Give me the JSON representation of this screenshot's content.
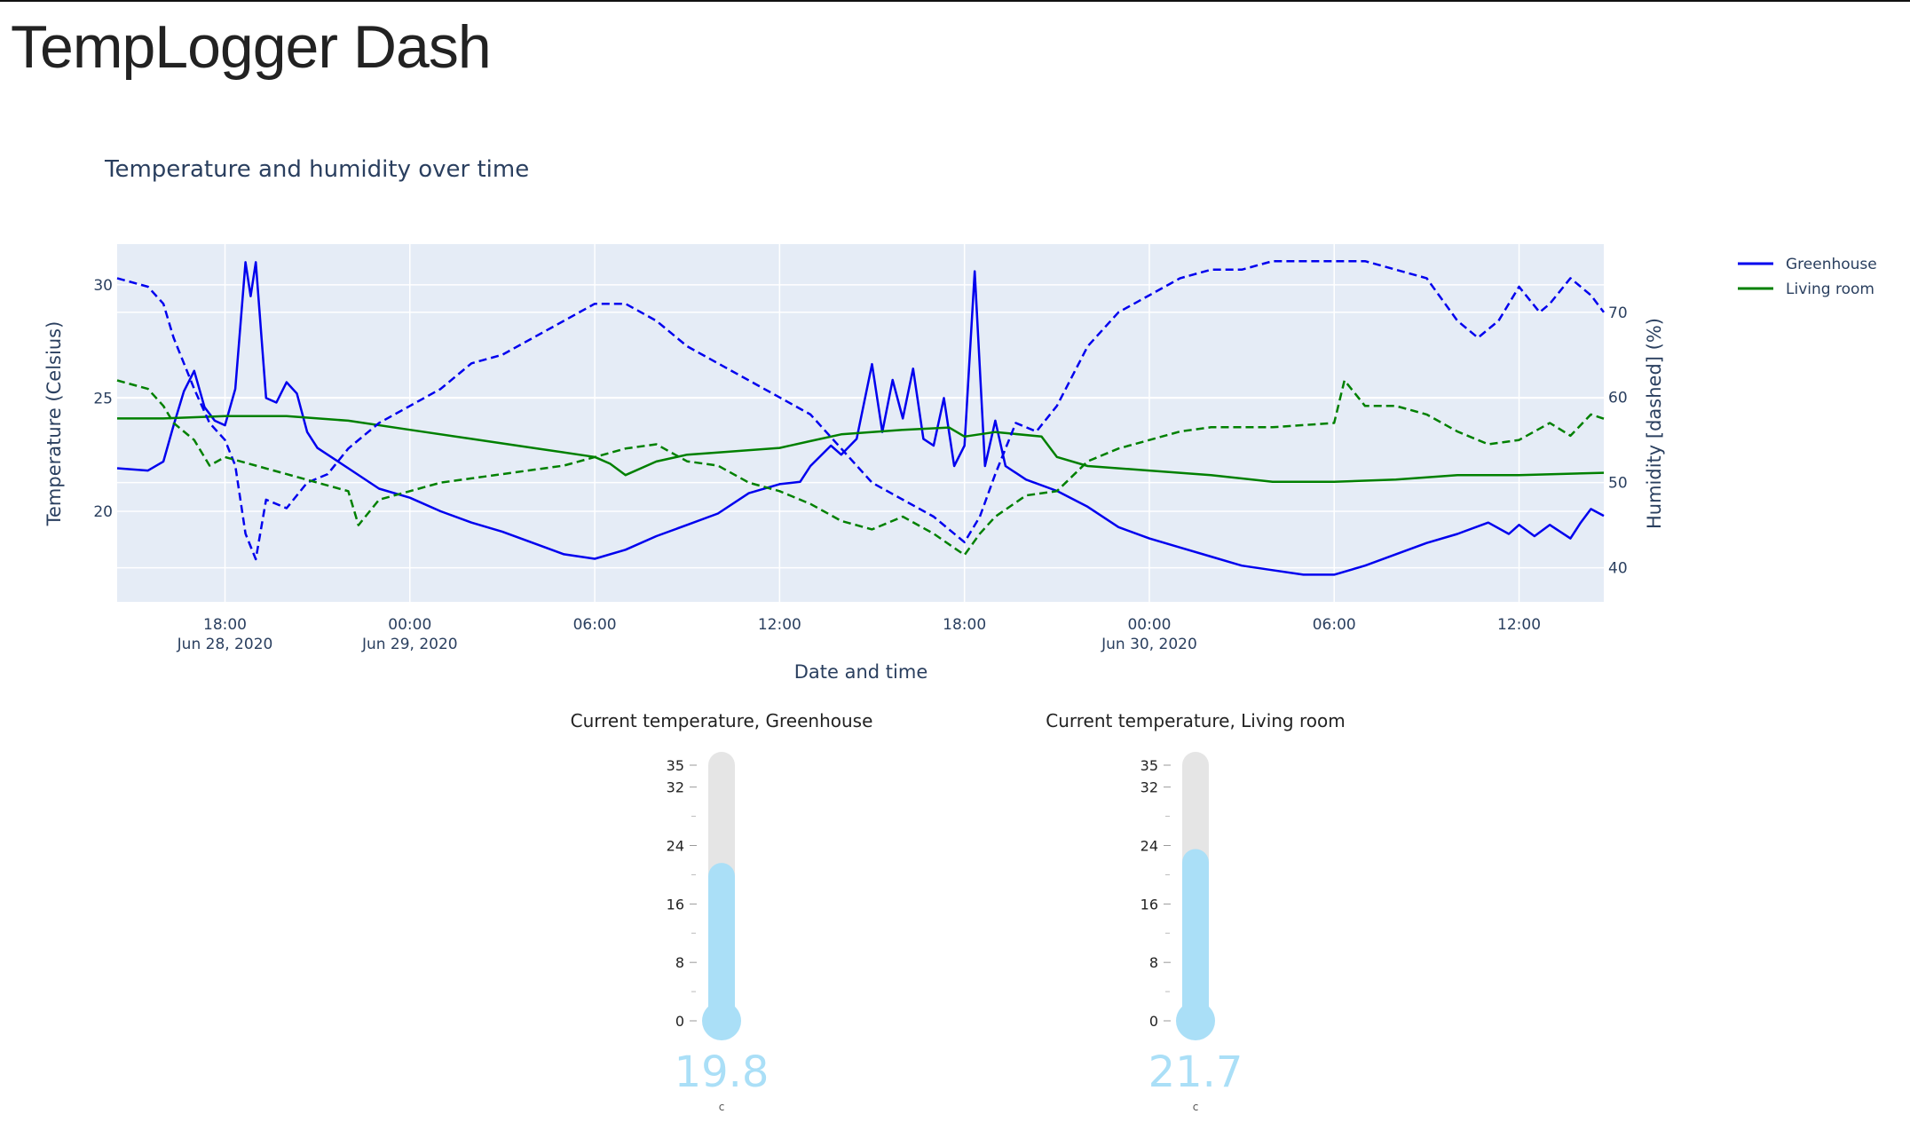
{
  "app": {
    "title": "TempLogger Dash"
  },
  "colors": {
    "greenhouse": "#0000ee",
    "living_room": "#008000",
    "plot_bg": "#e5ecf6",
    "gauge_fill": "#aadff7",
    "gauge_track": "#e5e5e5"
  },
  "chart_data": {
    "type": "line",
    "title": "Temperature and humidity over time",
    "xlabel": "Date and time",
    "ylabel": "Temperature (Celsius)",
    "y2label": "Humidity [dashed] (%)",
    "xlim": [
      "2020-06-28 14:30",
      "2020-06-30 14:45"
    ],
    "ylim": [
      16,
      31.8
    ],
    "y2lim": [
      36,
      78
    ],
    "x_ticks": [
      {
        "t": "2020-06-28 18:00",
        "line1": "18:00",
        "line2": "Jun 28, 2020"
      },
      {
        "t": "2020-06-29 00:00",
        "line1": "00:00",
        "line2": "Jun 29, 2020"
      },
      {
        "t": "2020-06-29 06:00",
        "line1": "06:00",
        "line2": ""
      },
      {
        "t": "2020-06-29 12:00",
        "line1": "12:00",
        "line2": ""
      },
      {
        "t": "2020-06-29 18:00",
        "line1": "18:00",
        "line2": ""
      },
      {
        "t": "2020-06-30 00:00",
        "line1": "00:00",
        "line2": "Jun 30, 2020"
      },
      {
        "t": "2020-06-30 06:00",
        "line1": "06:00",
        "line2": ""
      },
      {
        "t": "2020-06-30 12:00",
        "line1": "12:00",
        "line2": ""
      }
    ],
    "y_ticks": [
      20,
      25,
      30
    ],
    "y2_ticks": [
      40,
      50,
      60,
      70
    ],
    "grid": true,
    "legend_position": "top-right",
    "legend": [
      "Greenhouse",
      "Living room"
    ],
    "series": [
      {
        "name": "Greenhouse",
        "measure": "temperature",
        "dash": false,
        "color": "#0000ee",
        "points": [
          [
            "2020-06-28 14:30",
            21.9
          ],
          [
            "2020-06-28 15:30",
            21.8
          ],
          [
            "2020-06-28 16:00",
            22.2
          ],
          [
            "2020-06-28 16:20",
            23.8
          ],
          [
            "2020-06-28 16:40",
            25.3
          ],
          [
            "2020-06-28 17:00",
            26.2
          ],
          [
            "2020-06-28 17:20",
            24.6
          ],
          [
            "2020-06-28 17:40",
            24.0
          ],
          [
            "2020-06-28 18:00",
            23.8
          ],
          [
            "2020-06-28 18:20",
            25.4
          ],
          [
            "2020-06-28 18:40",
            31.0
          ],
          [
            "2020-06-28 18:50",
            29.5
          ],
          [
            "2020-06-28 19:00",
            31.0
          ],
          [
            "2020-06-28 19:10",
            28.0
          ],
          [
            "2020-06-28 19:20",
            25.0
          ],
          [
            "2020-06-28 19:40",
            24.8
          ],
          [
            "2020-06-28 20:00",
            25.7
          ],
          [
            "2020-06-28 20:20",
            25.2
          ],
          [
            "2020-06-28 20:40",
            23.5
          ],
          [
            "2020-06-28 21:00",
            22.8
          ],
          [
            "2020-06-28 22:00",
            21.9
          ],
          [
            "2020-06-28 23:00",
            21.0
          ],
          [
            "2020-06-29 00:00",
            20.6
          ],
          [
            "2020-06-29 01:00",
            20.0
          ],
          [
            "2020-06-29 02:00",
            19.5
          ],
          [
            "2020-06-29 03:00",
            19.1
          ],
          [
            "2020-06-29 04:00",
            18.6
          ],
          [
            "2020-06-29 05:00",
            18.1
          ],
          [
            "2020-06-29 06:00",
            17.9
          ],
          [
            "2020-06-29 07:00",
            18.3
          ],
          [
            "2020-06-29 08:00",
            18.9
          ],
          [
            "2020-06-29 09:00",
            19.4
          ],
          [
            "2020-06-29 10:00",
            19.9
          ],
          [
            "2020-06-29 11:00",
            20.8
          ],
          [
            "2020-06-29 12:00",
            21.2
          ],
          [
            "2020-06-29 12:40",
            21.3
          ],
          [
            "2020-06-29 13:00",
            22.0
          ],
          [
            "2020-06-29 13:40",
            22.9
          ],
          [
            "2020-06-29 14:00",
            22.5
          ],
          [
            "2020-06-29 14:30",
            23.2
          ],
          [
            "2020-06-29 15:00",
            26.5
          ],
          [
            "2020-06-29 15:20",
            23.5
          ],
          [
            "2020-06-29 15:40",
            25.8
          ],
          [
            "2020-06-29 16:00",
            24.1
          ],
          [
            "2020-06-29 16:20",
            26.3
          ],
          [
            "2020-06-29 16:40",
            23.2
          ],
          [
            "2020-06-29 17:00",
            22.9
          ],
          [
            "2020-06-29 17:20",
            25.0
          ],
          [
            "2020-06-29 17:40",
            22.0
          ],
          [
            "2020-06-29 18:00",
            22.9
          ],
          [
            "2020-06-29 18:20",
            30.6
          ],
          [
            "2020-06-29 18:40",
            22.0
          ],
          [
            "2020-06-29 19:00",
            24.0
          ],
          [
            "2020-06-29 19:20",
            22.0
          ],
          [
            "2020-06-29 20:00",
            21.4
          ],
          [
            "2020-06-29 21:00",
            20.9
          ],
          [
            "2020-06-29 22:00",
            20.2
          ],
          [
            "2020-06-29 23:00",
            19.3
          ],
          [
            "2020-06-30 00:00",
            18.8
          ],
          [
            "2020-06-30 01:00",
            18.4
          ],
          [
            "2020-06-30 02:00",
            18.0
          ],
          [
            "2020-06-30 03:00",
            17.6
          ],
          [
            "2020-06-30 04:00",
            17.4
          ],
          [
            "2020-06-30 05:00",
            17.2
          ],
          [
            "2020-06-30 06:00",
            17.2
          ],
          [
            "2020-06-30 07:00",
            17.6
          ],
          [
            "2020-06-30 08:00",
            18.1
          ],
          [
            "2020-06-30 09:00",
            18.6
          ],
          [
            "2020-06-30 10:00",
            19.0
          ],
          [
            "2020-06-30 11:00",
            19.5
          ],
          [
            "2020-06-30 11:40",
            19.0
          ],
          [
            "2020-06-30 12:00",
            19.4
          ],
          [
            "2020-06-30 12:30",
            18.9
          ],
          [
            "2020-06-30 13:00",
            19.4
          ],
          [
            "2020-06-30 13:40",
            18.8
          ],
          [
            "2020-06-30 14:00",
            19.5
          ],
          [
            "2020-06-30 14:20",
            20.1
          ],
          [
            "2020-06-30 14:45",
            19.8
          ]
        ]
      },
      {
        "name": "Living room",
        "measure": "temperature",
        "dash": false,
        "color": "#008000",
        "points": [
          [
            "2020-06-28 14:30",
            24.1
          ],
          [
            "2020-06-28 16:00",
            24.1
          ],
          [
            "2020-06-28 18:00",
            24.2
          ],
          [
            "2020-06-28 20:00",
            24.2
          ],
          [
            "2020-06-28 22:00",
            24.0
          ],
          [
            "2020-06-29 00:00",
            23.6
          ],
          [
            "2020-06-29 02:00",
            23.2
          ],
          [
            "2020-06-29 04:00",
            22.8
          ],
          [
            "2020-06-29 06:00",
            22.4
          ],
          [
            "2020-06-29 06:30",
            22.1
          ],
          [
            "2020-06-29 07:00",
            21.6
          ],
          [
            "2020-06-29 08:00",
            22.2
          ],
          [
            "2020-06-29 09:00",
            22.5
          ],
          [
            "2020-06-29 10:00",
            22.6
          ],
          [
            "2020-06-29 12:00",
            22.8
          ],
          [
            "2020-06-29 13:00",
            23.1
          ],
          [
            "2020-06-29 14:00",
            23.4
          ],
          [
            "2020-06-29 16:00",
            23.6
          ],
          [
            "2020-06-29 17:30",
            23.7
          ],
          [
            "2020-06-29 18:00",
            23.3
          ],
          [
            "2020-06-29 19:00",
            23.5
          ],
          [
            "2020-06-29 20:30",
            23.3
          ],
          [
            "2020-06-29 21:00",
            22.4
          ],
          [
            "2020-06-29 22:00",
            22.0
          ],
          [
            "2020-06-30 00:00",
            21.8
          ],
          [
            "2020-06-30 02:00",
            21.6
          ],
          [
            "2020-06-30 04:00",
            21.3
          ],
          [
            "2020-06-30 06:00",
            21.3
          ],
          [
            "2020-06-30 08:00",
            21.4
          ],
          [
            "2020-06-30 10:00",
            21.6
          ],
          [
            "2020-06-30 12:00",
            21.6
          ],
          [
            "2020-06-30 14:45",
            21.7
          ]
        ]
      },
      {
        "name": "Greenhouse",
        "measure": "humidity",
        "dash": true,
        "color": "#0000ee",
        "points": [
          [
            "2020-06-28 14:30",
            74
          ],
          [
            "2020-06-28 15:30",
            73
          ],
          [
            "2020-06-28 16:00",
            71
          ],
          [
            "2020-06-28 16:20",
            67
          ],
          [
            "2020-06-28 17:00",
            61
          ],
          [
            "2020-06-28 17:30",
            57
          ],
          [
            "2020-06-28 18:00",
            55
          ],
          [
            "2020-06-28 18:20",
            52
          ],
          [
            "2020-06-28 18:40",
            44
          ],
          [
            "2020-06-28 19:00",
            41
          ],
          [
            "2020-06-28 19:20",
            48
          ],
          [
            "2020-06-28 20:00",
            47
          ],
          [
            "2020-06-28 20:40",
            50
          ],
          [
            "2020-06-28 21:20",
            51
          ],
          [
            "2020-06-28 22:00",
            54
          ],
          [
            "2020-06-28 23:00",
            57
          ],
          [
            "2020-06-29 00:00",
            59
          ],
          [
            "2020-06-29 01:00",
            61
          ],
          [
            "2020-06-29 02:00",
            64
          ],
          [
            "2020-06-29 03:00",
            65
          ],
          [
            "2020-06-29 04:00",
            67
          ],
          [
            "2020-06-29 05:00",
            69
          ],
          [
            "2020-06-29 06:00",
            71
          ],
          [
            "2020-06-29 07:00",
            71
          ],
          [
            "2020-06-29 08:00",
            69
          ],
          [
            "2020-06-29 09:00",
            66
          ],
          [
            "2020-06-29 10:00",
            64
          ],
          [
            "2020-06-29 11:00",
            62
          ],
          [
            "2020-06-29 12:00",
            60
          ],
          [
            "2020-06-29 13:00",
            58
          ],
          [
            "2020-06-29 14:00",
            54
          ],
          [
            "2020-06-29 15:00",
            50
          ],
          [
            "2020-06-29 16:00",
            48
          ],
          [
            "2020-06-29 17:00",
            46
          ],
          [
            "2020-06-29 18:00",
            43
          ],
          [
            "2020-06-29 18:30",
            46
          ],
          [
            "2020-06-29 19:00",
            51
          ],
          [
            "2020-06-29 19:40",
            57
          ],
          [
            "2020-06-29 20:20",
            56
          ],
          [
            "2020-06-29 21:00",
            59
          ],
          [
            "2020-06-29 22:00",
            66
          ],
          [
            "2020-06-29 23:00",
            70
          ],
          [
            "2020-06-30 00:00",
            72
          ],
          [
            "2020-06-30 01:00",
            74
          ],
          [
            "2020-06-30 02:00",
            75
          ],
          [
            "2020-06-30 03:00",
            75
          ],
          [
            "2020-06-30 04:00",
            76
          ],
          [
            "2020-06-30 05:00",
            76
          ],
          [
            "2020-06-30 06:00",
            76
          ],
          [
            "2020-06-30 07:00",
            76
          ],
          [
            "2020-06-30 08:00",
            75
          ],
          [
            "2020-06-30 09:00",
            74
          ],
          [
            "2020-06-30 10:00",
            69
          ],
          [
            "2020-06-30 10:40",
            67
          ],
          [
            "2020-06-30 11:20",
            69
          ],
          [
            "2020-06-30 12:00",
            73
          ],
          [
            "2020-06-30 12:40",
            70
          ],
          [
            "2020-06-30 13:00",
            71
          ],
          [
            "2020-06-30 13:40",
            74
          ],
          [
            "2020-06-30 14:20",
            72
          ],
          [
            "2020-06-30 14:45",
            70
          ]
        ]
      },
      {
        "name": "Living room",
        "measure": "humidity",
        "dash": true,
        "color": "#008000",
        "points": [
          [
            "2020-06-28 14:30",
            62
          ],
          [
            "2020-06-28 15:30",
            61
          ],
          [
            "2020-06-28 16:00",
            59
          ],
          [
            "2020-06-28 16:20",
            57
          ],
          [
            "2020-06-28 17:00",
            55
          ],
          [
            "2020-06-28 17:30",
            52
          ],
          [
            "2020-06-28 18:00",
            53
          ],
          [
            "2020-06-28 19:00",
            52
          ],
          [
            "2020-06-28 20:00",
            51
          ],
          [
            "2020-06-28 21:00",
            50
          ],
          [
            "2020-06-28 22:00",
            49
          ],
          [
            "2020-06-28 22:20",
            45
          ],
          [
            "2020-06-28 23:00",
            48
          ],
          [
            "2020-06-29 00:00",
            49
          ],
          [
            "2020-06-29 01:00",
            50
          ],
          [
            "2020-06-29 02:00",
            50.5
          ],
          [
            "2020-06-29 03:00",
            51
          ],
          [
            "2020-06-29 04:00",
            51.5
          ],
          [
            "2020-06-29 05:00",
            52
          ],
          [
            "2020-06-29 06:00",
            53
          ],
          [
            "2020-06-29 07:00",
            54
          ],
          [
            "2020-06-29 08:00",
            54.5
          ],
          [
            "2020-06-29 09:00",
            52.5
          ],
          [
            "2020-06-29 10:00",
            52
          ],
          [
            "2020-06-29 11:00",
            50
          ],
          [
            "2020-06-29 12:00",
            49
          ],
          [
            "2020-06-29 13:00",
            47.5
          ],
          [
            "2020-06-29 14:00",
            45.5
          ],
          [
            "2020-06-29 15:00",
            44.5
          ],
          [
            "2020-06-29 16:00",
            46
          ],
          [
            "2020-06-29 17:00",
            44
          ],
          [
            "2020-06-29 18:00",
            41.5
          ],
          [
            "2020-06-29 18:30",
            44
          ],
          [
            "2020-06-29 19:00",
            46
          ],
          [
            "2020-06-29 20:00",
            48.5
          ],
          [
            "2020-06-29 21:00",
            49
          ],
          [
            "2020-06-29 22:00",
            52.5
          ],
          [
            "2020-06-29 23:00",
            54
          ],
          [
            "2020-06-30 00:00",
            55
          ],
          [
            "2020-06-30 01:00",
            56
          ],
          [
            "2020-06-30 02:00",
            56.5
          ],
          [
            "2020-06-30 04:00",
            56.5
          ],
          [
            "2020-06-30 06:00",
            57
          ],
          [
            "2020-06-30 06:20",
            62
          ],
          [
            "2020-06-30 07:00",
            59
          ],
          [
            "2020-06-30 08:00",
            59
          ],
          [
            "2020-06-30 09:00",
            58
          ],
          [
            "2020-06-30 10:00",
            56
          ],
          [
            "2020-06-30 11:00",
            54.5
          ],
          [
            "2020-06-30 12:00",
            55
          ],
          [
            "2020-06-30 13:00",
            57
          ],
          [
            "2020-06-30 13:40",
            55.5
          ],
          [
            "2020-06-30 14:20",
            58
          ],
          [
            "2020-06-30 14:45",
            57.5
          ]
        ]
      }
    ]
  },
  "gauges": [
    {
      "title": "Current temperature, Greenhouse",
      "value": 19.8,
      "value_text": "19.8",
      "unit": "c",
      "min": 0,
      "max": 35,
      "ticks": [
        0,
        8,
        16,
        24,
        32,
        35
      ],
      "minor_ticks": [
        4,
        12,
        20,
        28
      ]
    },
    {
      "title": "Current temperature, Living room",
      "value": 21.7,
      "value_text": "21.7",
      "unit": "c",
      "min": 0,
      "max": 35,
      "ticks": [
        0,
        8,
        16,
        24,
        32,
        35
      ],
      "minor_ticks": [
        4,
        12,
        20,
        28
      ]
    }
  ]
}
